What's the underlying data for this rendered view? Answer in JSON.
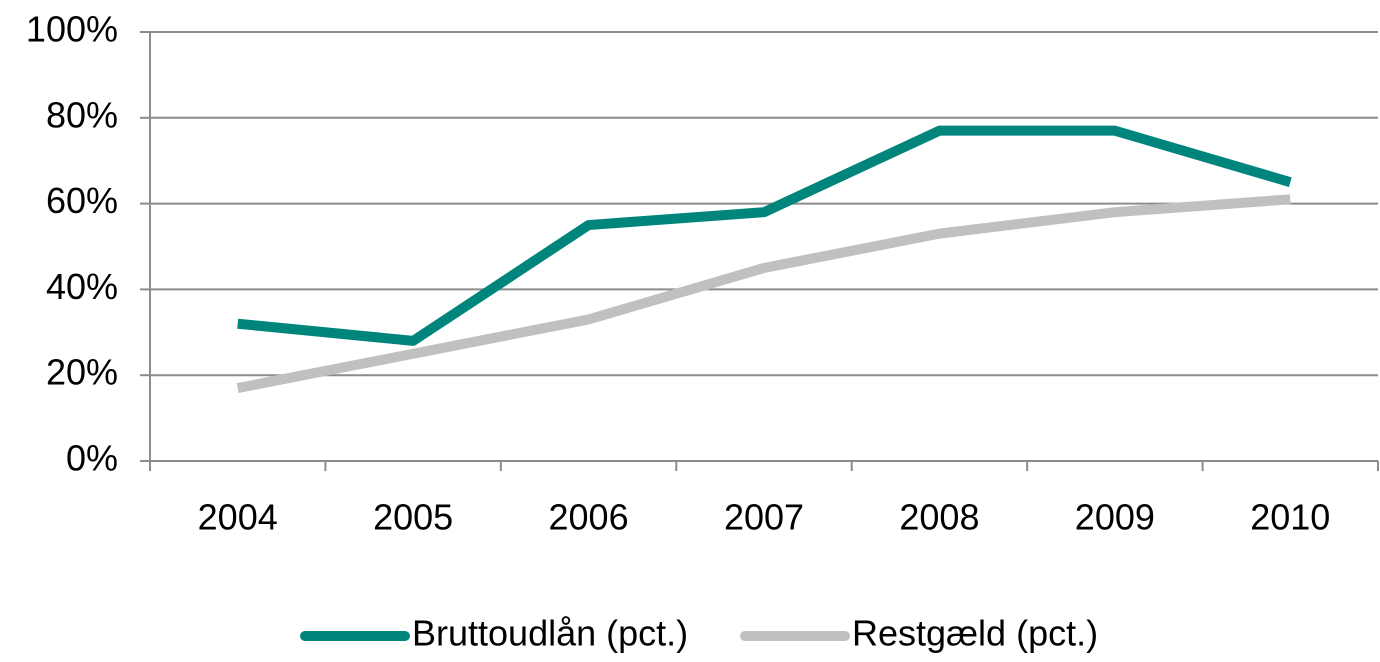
{
  "chart_data": {
    "type": "line",
    "categories": [
      "2004",
      "2005",
      "2006",
      "2007",
      "2008",
      "2009",
      "2010"
    ],
    "series": [
      {
        "name": "Bruttoudlån (pct.)",
        "color": "#00857d",
        "values": [
          32,
          28,
          55,
          58,
          77,
          77,
          65
        ]
      },
      {
        "name": "Restgæld (pct.)",
        "color": "#c0c0c0",
        "values": [
          17,
          25,
          33,
          45,
          53,
          58,
          61
        ]
      }
    ],
    "ylim": [
      0,
      100
    ],
    "yticks": [
      {
        "value": 0,
        "label": "0%"
      },
      {
        "value": 20,
        "label": "20%"
      },
      {
        "value": 40,
        "label": "40%"
      },
      {
        "value": 60,
        "label": "60%"
      },
      {
        "value": 80,
        "label": "80%"
      },
      {
        "value": 100,
        "label": "100%"
      }
    ],
    "grid": true,
    "legend": "bottom"
  }
}
